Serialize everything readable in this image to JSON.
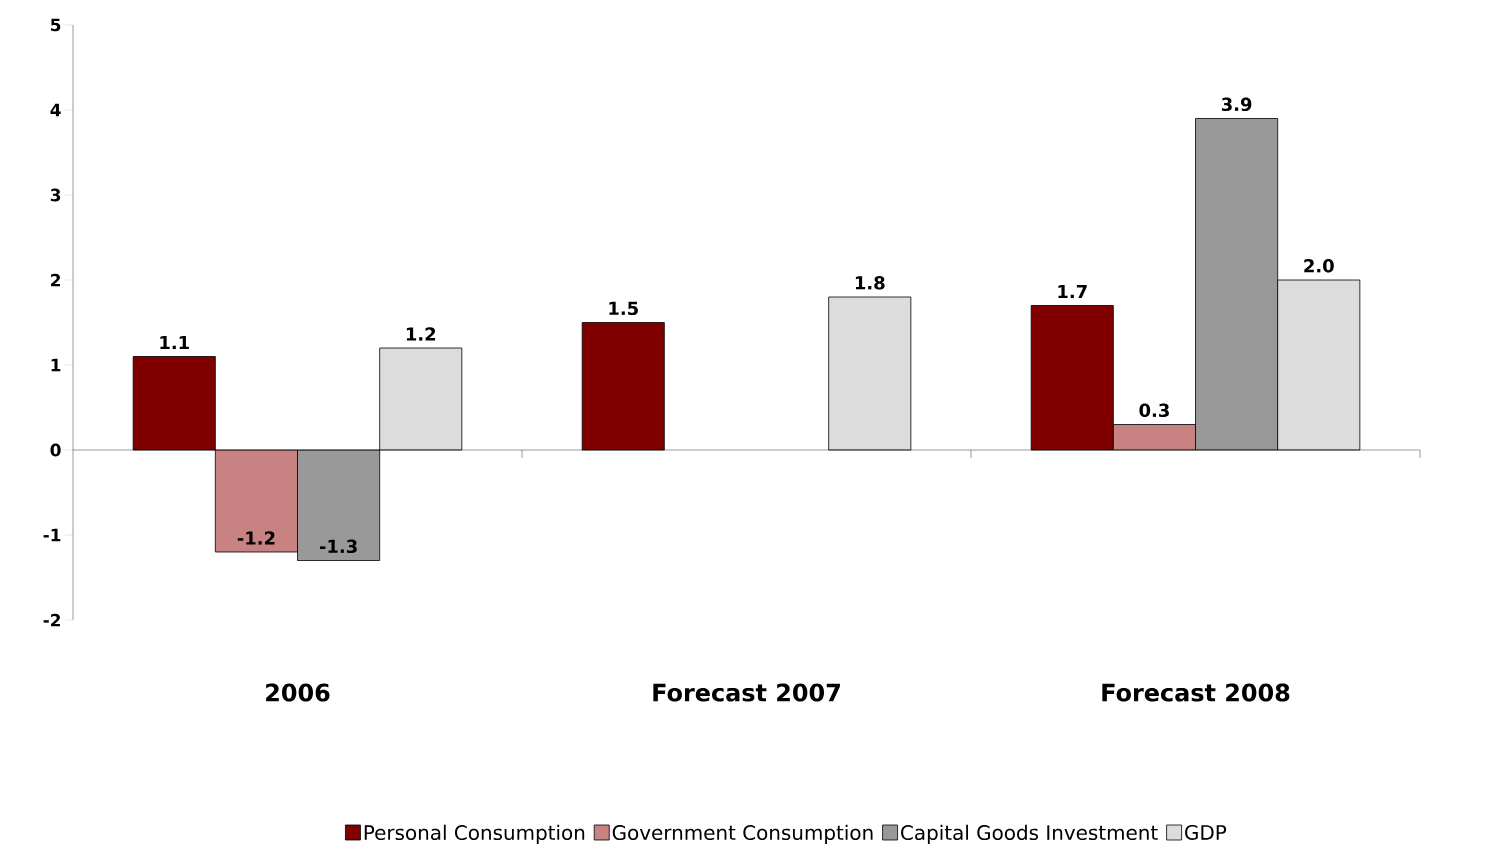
{
  "chart_data": {
    "type": "bar",
    "categories": [
      "2006",
      "Forecast 2007",
      "Forecast 2008"
    ],
    "series": [
      {
        "name": "Personal Consumption",
        "color": "#800000",
        "values": [
          1.1,
          1.5,
          1.7
        ],
        "value_labels": [
          "1.1",
          "1.5",
          "1.7"
        ]
      },
      {
        "name": "Government Consumption",
        "color": "#c98282",
        "values": [
          -1.2,
          null,
          0.3
        ],
        "value_labels": [
          "-1.2",
          null,
          "0.3"
        ]
      },
      {
        "name": "Capital Goods Investment",
        "color": "#999999",
        "values": [
          -1.3,
          null,
          3.9
        ],
        "value_labels": [
          "-1.3",
          null,
          "3.9"
        ]
      },
      {
        "name": "GDP",
        "color": "#dcdcdc",
        "values": [
          1.2,
          1.8,
          2.0
        ],
        "value_labels": [
          "1.2",
          "1.8",
          "2.0"
        ]
      }
    ],
    "ylim": [
      -2,
      5
    ],
    "yticks": [
      -2,
      -1,
      0,
      1,
      2,
      3,
      4,
      5
    ],
    "legend": "bottom"
  }
}
